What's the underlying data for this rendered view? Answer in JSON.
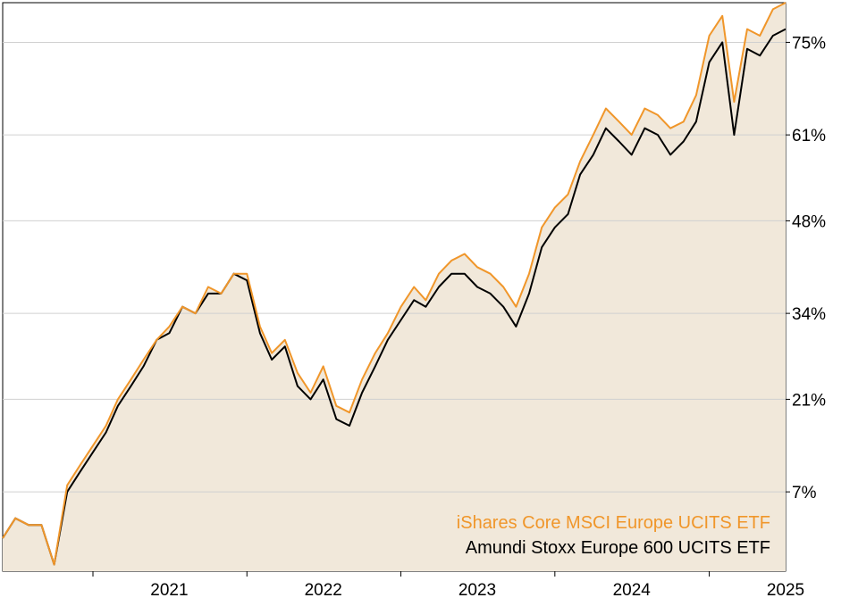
{
  "chart_data": {
    "type": "line",
    "title": "",
    "xlabel": "",
    "ylabel": "",
    "x_ticks": [
      "2021",
      "2022",
      "2023",
      "2024",
      "2025"
    ],
    "y_ticks": [
      "7%",
      "21%",
      "34%",
      "48%",
      "61%",
      "75%"
    ],
    "ylim": [
      -5,
      81
    ],
    "grid": "horizontal",
    "legend_position": "bottom-right",
    "area_fill": "#f1e8da",
    "x": [
      "2020-06",
      "2020-07",
      "2020-08",
      "2020-09",
      "2020-10",
      "2020-11",
      "2020-12",
      "2021-01",
      "2021-02",
      "2021-03",
      "2021-04",
      "2021-05",
      "2021-06",
      "2021-07",
      "2021-08",
      "2021-09",
      "2021-10",
      "2021-11",
      "2021-12",
      "2022-01",
      "2022-02",
      "2022-03",
      "2022-04",
      "2022-05",
      "2022-06",
      "2022-07",
      "2022-08",
      "2022-09",
      "2022-10",
      "2022-11",
      "2022-12",
      "2023-01",
      "2023-02",
      "2023-03",
      "2023-04",
      "2023-05",
      "2023-06",
      "2023-07",
      "2023-08",
      "2023-09",
      "2023-10",
      "2023-11",
      "2023-12",
      "2024-01",
      "2024-02",
      "2024-03",
      "2024-04",
      "2024-05",
      "2024-06",
      "2024-07",
      "2024-08",
      "2024-09",
      "2024-10",
      "2024-11",
      "2024-12",
      "2025-01",
      "2025-02",
      "2025-03",
      "2025-04",
      "2025-05",
      "2025-06",
      "2025-07"
    ],
    "series": [
      {
        "name": "iShares Core MSCI Europe UCITS ETF",
        "color": "#f0962a",
        "values": [
          0,
          3,
          2,
          2,
          -4,
          8,
          11,
          14,
          17,
          21,
          24,
          27,
          30,
          32,
          35,
          34,
          38,
          37,
          40,
          40,
          32,
          28,
          30,
          25,
          22,
          26,
          20,
          19,
          24,
          28,
          31,
          35,
          38,
          36,
          40,
          42,
          43,
          41,
          40,
          38,
          35,
          40,
          47,
          50,
          52,
          57,
          61,
          65,
          63,
          61,
          65,
          64,
          62,
          63,
          67,
          76,
          79,
          66,
          77,
          76,
          80,
          81
        ]
      },
      {
        "name": "Amundi Stoxx Europe 600 UCITS ETF",
        "color": "#000000",
        "values": [
          0,
          3,
          2,
          2,
          -4,
          7,
          10,
          13,
          16,
          20,
          23,
          26,
          30,
          31,
          35,
          34,
          37,
          37,
          40,
          39,
          31,
          27,
          29,
          23,
          21,
          24,
          18,
          17,
          22,
          26,
          30,
          33,
          36,
          35,
          38,
          40,
          40,
          38,
          37,
          35,
          32,
          37,
          44,
          47,
          49,
          55,
          58,
          62,
          60,
          58,
          62,
          61,
          58,
          60,
          63,
          72,
          75,
          61,
          74,
          73,
          76,
          77
        ]
      }
    ]
  }
}
